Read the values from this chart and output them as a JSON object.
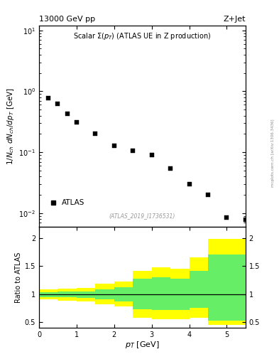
{
  "title_left": "13000 GeV pp",
  "title_right": "Z+Jet",
  "plot_label": "Scalar Σ(p_T) (ATLAS UE in Z production)",
  "watermark": "(ATLAS_2019_I1736531)",
  "side_label": "mcplots.cern.ch [arXiv:1306.3436]",
  "ylabel_main": "1/N_{ch} dN_{ch}/dp_T  [GeV]",
  "ylabel_ratio": "Ratio to ATLAS",
  "xlabel": "p_T [GeV]",
  "legend_label": "ATLAS",
  "data_x": [
    0.25,
    0.5,
    0.75,
    1.0,
    1.5,
    2.0,
    2.5,
    3.0,
    3.5,
    4.0,
    4.5,
    5.0,
    5.5
  ],
  "data_y": [
    0.78,
    0.62,
    0.43,
    0.31,
    0.2,
    0.13,
    0.105,
    0.09,
    0.055,
    0.03,
    0.02,
    0.0085,
    0.0078
  ],
  "xlim": [
    0,
    5.5
  ],
  "ylim_main_lo": 0.006,
  "ylim_main_hi": 12.0,
  "ylim_ratio_lo": 0.4,
  "ylim_ratio_hi": 2.2,
  "ratio_yticks": [
    0.5,
    1.0,
    1.5,
    2.0
  ],
  "band_yellow_x": [
    0.0,
    0.5,
    1.0,
    1.5,
    2.0,
    2.5,
    3.0,
    3.5,
    4.0,
    4.5,
    5.5
  ],
  "band_yellow_lo": [
    0.9,
    0.88,
    0.87,
    0.82,
    0.78,
    0.58,
    0.55,
    0.55,
    0.58,
    0.45,
    0.45
  ],
  "band_yellow_hi": [
    1.08,
    1.1,
    1.11,
    1.18,
    1.22,
    1.42,
    1.48,
    1.45,
    1.65,
    1.98,
    1.98
  ],
  "band_green_x": [
    0.0,
    0.5,
    1.0,
    1.5,
    2.0,
    2.5,
    3.0,
    3.5,
    4.0,
    4.5,
    5.5
  ],
  "band_green_lo": [
    0.95,
    0.94,
    0.93,
    0.9,
    0.87,
    0.73,
    0.72,
    0.72,
    0.75,
    0.52,
    0.52
  ],
  "band_green_hi": [
    1.03,
    1.04,
    1.05,
    1.08,
    1.12,
    1.27,
    1.3,
    1.28,
    1.42,
    1.7,
    1.7
  ],
  "color_yellow": "#ffff00",
  "color_green": "#66ee66",
  "marker_color": "black",
  "marker_size": 4.0,
  "fig_width": 3.93,
  "fig_height": 5.12,
  "dpi": 100
}
